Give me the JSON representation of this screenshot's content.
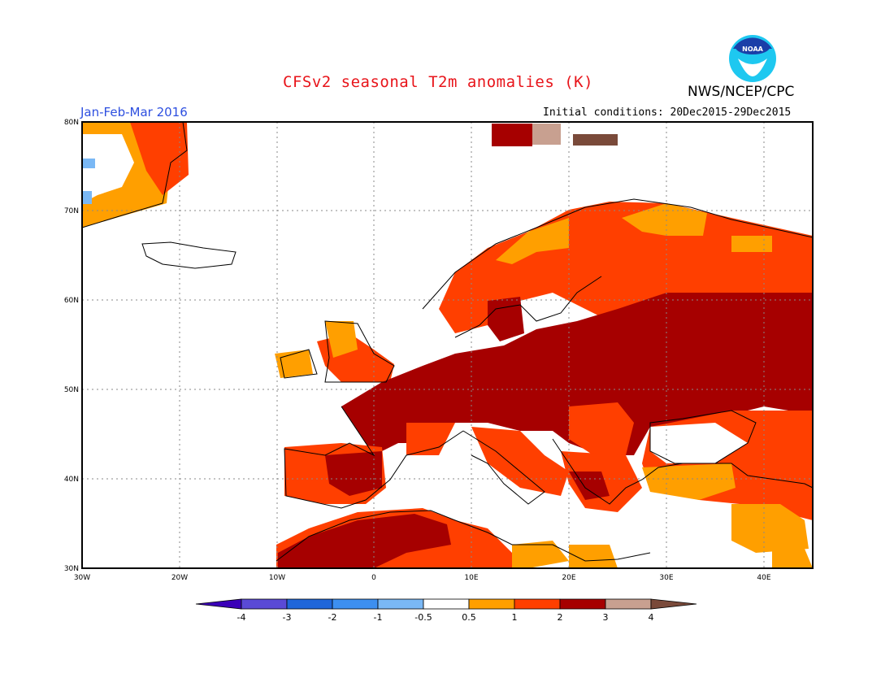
{
  "header": {
    "title": "CFSv2 seasonal T2m anomalies (K)",
    "agency": "NWS/NCEP/CPC",
    "season": "Jan-Feb-Mar 2016",
    "initial_conditions": "Initial conditions: 20Dec2015-29Dec2015"
  },
  "logo": {
    "text": "NOAA",
    "name": "noaa-logo"
  },
  "map": {
    "lon_range": [
      -30,
      45
    ],
    "lat_range": [
      30,
      80
    ],
    "lon_ticks": [
      "30W",
      "20W",
      "10W",
      "0",
      "10E",
      "20E",
      "30E",
      "40E"
    ],
    "lat_ticks": [
      "30N",
      "40N",
      "50N",
      "60N",
      "70N",
      "80N"
    ],
    "grid": "dotted"
  },
  "colorbar": {
    "labels": [
      "-4",
      "-3",
      "-2",
      "-1",
      "-0.5",
      "0.5",
      "1",
      "2",
      "3",
      "4"
    ],
    "colors": [
      "#3a00b8",
      "#5a4ad6",
      "#1f66d9",
      "#3d8ff0",
      "#7ab8f5",
      "#ffffff",
      "#ff9f00",
      "#ff3f00",
      "#a60000",
      "#c8a090",
      "#7a4a3a"
    ]
  },
  "legend_colors": {
    "c05_1": "#ff9f00",
    "c1_2": "#ff3f00",
    "c2_3": "#a60000",
    "c3_4": "#c8a090",
    "cm1_m05": "#7ab8f5",
    "c4plus": "#7a4a3a"
  }
}
